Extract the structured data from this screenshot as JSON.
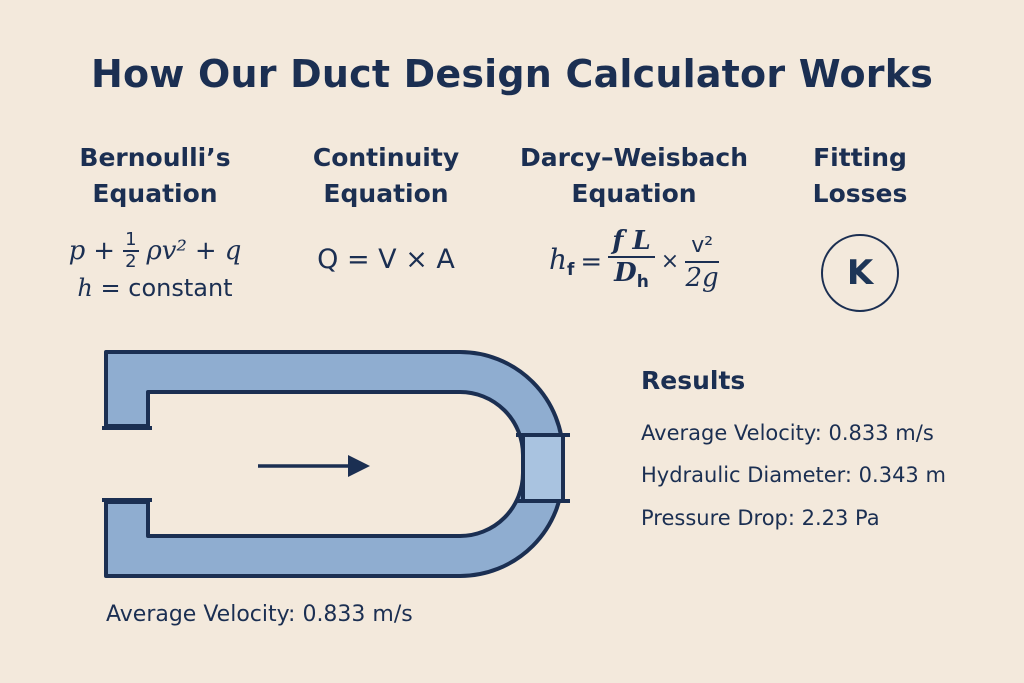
{
  "title": "How Our Duct Design Calculator Works",
  "columns": {
    "bernoulli": {
      "heading_line1": "Bernoulli’s",
      "heading_line2": "Equation",
      "eq_p": "p",
      "eq_plus1": "+",
      "eq_frac_num": "1",
      "eq_frac_den": "2",
      "eq_rho_v2": "ρv²",
      "eq_plus2": "+",
      "eq_q": "q",
      "eq_h": "h",
      "eq_equals_constant": "= constant"
    },
    "continuity": {
      "heading_line1": "Continuity",
      "heading_line2": "Equation",
      "equation": "Q = V × A"
    },
    "darcy": {
      "heading_line1": "Darcy–Weisbach",
      "heading_line2": "Equation",
      "h": "h",
      "h_sub": "f",
      "equals": "=",
      "frac1_num": "f L",
      "frac1_den_D": "D",
      "frac1_den_sub": "h",
      "times": "×",
      "frac2_num": "v²",
      "frac2_den": "2g"
    },
    "fitting": {
      "heading_line1": "Fitting",
      "heading_line2": "Losses",
      "symbol": "K"
    }
  },
  "results": {
    "title": "Results",
    "average_velocity": "Average Velocity: 0.833 m/s",
    "hydraulic_diameter": "Hydraulic Diameter: 0.343 m",
    "pressure_drop": "Pressure Drop: 2.23 Pa"
  },
  "diagram": {
    "bottom_label": "Average Velocity: 0.833 m/s",
    "duct_color": "#8fadd0",
    "outline_color": "#1b2f52",
    "arrow_icon": "flow-arrow-icon"
  }
}
